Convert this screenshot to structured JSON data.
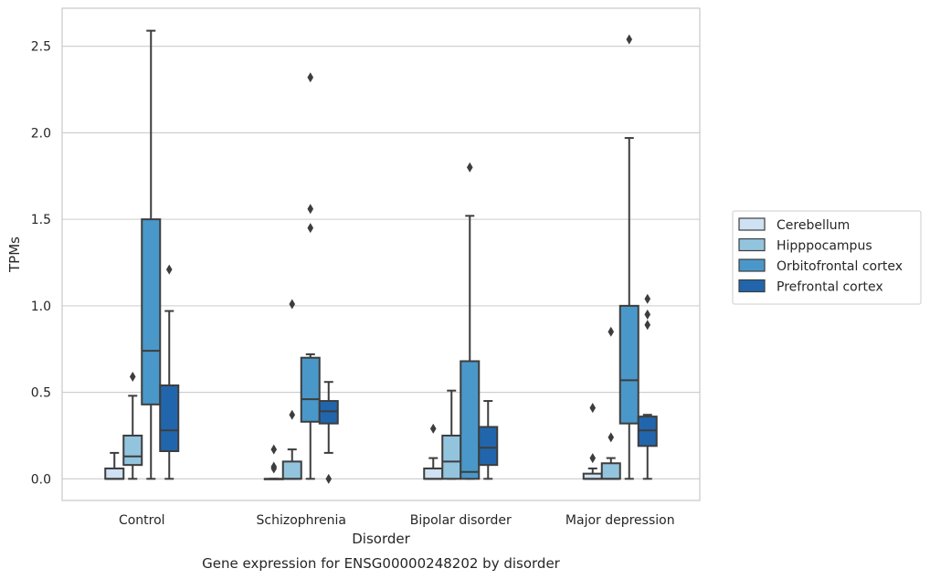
{
  "chart_data": {
    "type": "box",
    "caption": "Gene expression for ENSG00000248202 by disorder",
    "xlabel": "Disorder",
    "ylabel": "TPMs",
    "ylim": [
      -0.125,
      2.72
    ],
    "yticks": [
      0.0,
      0.5,
      1.0,
      1.5,
      2.0,
      2.5
    ],
    "ytick_labels": [
      "0.0",
      "0.5",
      "1.0",
      "1.5",
      "2.0",
      "2.5"
    ],
    "grid": "horizontal",
    "legend_position": "right",
    "categories": [
      "Control",
      "Schizophrenia",
      "Bipolar disorder",
      "Major depression"
    ],
    "series": [
      {
        "name": "Cerebellum",
        "color": "#cfe1f2",
        "boxes": [
          {
            "q1": 0.0,
            "median": 0.0,
            "q3": 0.06,
            "whisker_low": 0.0,
            "whisker_high": 0.15,
            "outliers": []
          },
          {
            "q1": 0.0,
            "median": 0.0,
            "q3": 0.0,
            "whisker_low": 0.0,
            "whisker_high": 0.0,
            "outliers": [
              0.06,
              0.07,
              0.17
            ]
          },
          {
            "q1": 0.0,
            "median": 0.0,
            "q3": 0.06,
            "whisker_low": 0.0,
            "whisker_high": 0.12,
            "outliers": [
              0.29
            ]
          },
          {
            "q1": 0.0,
            "median": 0.0,
            "q3": 0.03,
            "whisker_low": 0.0,
            "whisker_high": 0.06,
            "outliers": [
              0.12,
              0.41
            ]
          }
        ]
      },
      {
        "name": "Hipppocampus",
        "color": "#93c4de",
        "boxes": [
          {
            "q1": 0.08,
            "median": 0.13,
            "q3": 0.25,
            "whisker_low": 0.0,
            "whisker_high": 0.48,
            "outliers": [
              0.59
            ]
          },
          {
            "q1": 0.0,
            "median": 0.0,
            "q3": 0.1,
            "whisker_low": 0.0,
            "whisker_high": 0.17,
            "outliers": [
              0.37,
              1.01
            ]
          },
          {
            "q1": 0.0,
            "median": 0.1,
            "q3": 0.25,
            "whisker_low": 0.0,
            "whisker_high": 0.51,
            "outliers": []
          },
          {
            "q1": 0.0,
            "median": 0.0,
            "q3": 0.09,
            "whisker_low": 0.0,
            "whisker_high": 0.12,
            "outliers": [
              0.24,
              0.85
            ]
          }
        ]
      },
      {
        "name": "Orbitofrontal cortex",
        "color": "#4a98c9",
        "boxes": [
          {
            "q1": 0.43,
            "median": 0.74,
            "q3": 1.5,
            "whisker_low": 0.0,
            "whisker_high": 2.59,
            "outliers": []
          },
          {
            "q1": 0.33,
            "median": 0.46,
            "q3": 0.7,
            "whisker_low": 0.0,
            "whisker_high": 0.72,
            "outliers": [
              1.45,
              1.56,
              2.32
            ]
          },
          {
            "q1": 0.0,
            "median": 0.04,
            "q3": 0.68,
            "whisker_low": 0.0,
            "whisker_high": 1.52,
            "outliers": [
              1.8
            ]
          },
          {
            "q1": 0.32,
            "median": 0.57,
            "q3": 1.0,
            "whisker_low": 0.0,
            "whisker_high": 1.97,
            "outliers": [
              2.54
            ]
          }
        ]
      },
      {
        "name": "Prefrontal cortex",
        "color": "#2166ac",
        "boxes": [
          {
            "q1": 0.16,
            "median": 0.28,
            "q3": 0.54,
            "whisker_low": 0.0,
            "whisker_high": 0.97,
            "outliers": [
              1.21
            ]
          },
          {
            "q1": 0.32,
            "median": 0.39,
            "q3": 0.45,
            "whisker_low": 0.15,
            "whisker_high": 0.56,
            "outliers": [
              0.0
            ]
          },
          {
            "q1": 0.08,
            "median": 0.18,
            "q3": 0.3,
            "whisker_low": 0.0,
            "whisker_high": 0.45,
            "outliers": []
          },
          {
            "q1": 0.19,
            "median": 0.28,
            "q3": 0.36,
            "whisker_low": 0.0,
            "whisker_high": 0.37,
            "outliers": [
              0.89,
              0.95,
              1.04
            ]
          }
        ]
      }
    ]
  }
}
